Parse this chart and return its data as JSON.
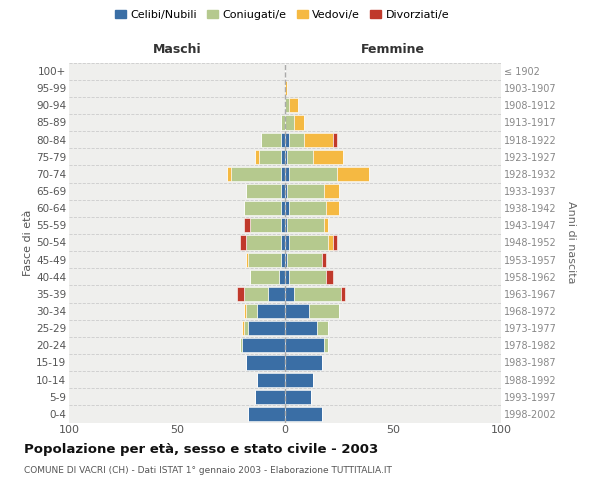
{
  "age_groups": [
    "0-4",
    "5-9",
    "10-14",
    "15-19",
    "20-24",
    "25-29",
    "30-34",
    "35-39",
    "40-44",
    "45-49",
    "50-54",
    "55-59",
    "60-64",
    "65-69",
    "70-74",
    "75-79",
    "80-84",
    "85-89",
    "90-94",
    "95-99",
    "100+"
  ],
  "birth_years": [
    "1998-2002",
    "1993-1997",
    "1988-1992",
    "1983-1987",
    "1978-1982",
    "1973-1977",
    "1968-1972",
    "1963-1967",
    "1958-1962",
    "1953-1957",
    "1948-1952",
    "1943-1947",
    "1938-1942",
    "1933-1937",
    "1928-1932",
    "1923-1927",
    "1918-1922",
    "1913-1917",
    "1908-1912",
    "1903-1907",
    "≤ 1902"
  ],
  "maschi": {
    "celibi": [
      17,
      14,
      13,
      18,
      20,
      17,
      13,
      8,
      3,
      2,
      2,
      2,
      2,
      2,
      2,
      2,
      2,
      0,
      0,
      0,
      0
    ],
    "coniugati": [
      0,
      0,
      0,
      0,
      1,
      2,
      5,
      11,
      13,
      15,
      16,
      14,
      17,
      16,
      23,
      10,
      9,
      2,
      0,
      0,
      0
    ],
    "vedovi": [
      0,
      0,
      0,
      0,
      0,
      1,
      1,
      0,
      0,
      1,
      0,
      0,
      0,
      0,
      2,
      2,
      0,
      0,
      0,
      0,
      0
    ],
    "divorziati": [
      0,
      0,
      0,
      0,
      0,
      0,
      0,
      3,
      0,
      0,
      3,
      3,
      0,
      0,
      0,
      0,
      0,
      0,
      0,
      0,
      0
    ]
  },
  "femmine": {
    "nubili": [
      17,
      12,
      13,
      17,
      18,
      15,
      11,
      4,
      2,
      1,
      2,
      1,
      2,
      1,
      2,
      1,
      2,
      0,
      0,
      0,
      0
    ],
    "coniugate": [
      0,
      0,
      0,
      0,
      2,
      5,
      14,
      22,
      17,
      16,
      18,
      17,
      17,
      17,
      22,
      12,
      7,
      4,
      2,
      0,
      0
    ],
    "vedove": [
      0,
      0,
      0,
      0,
      0,
      0,
      0,
      0,
      0,
      0,
      2,
      2,
      6,
      7,
      15,
      14,
      13,
      5,
      4,
      1,
      0
    ],
    "divorziate": [
      0,
      0,
      0,
      0,
      0,
      0,
      0,
      2,
      3,
      2,
      2,
      0,
      0,
      0,
      0,
      0,
      2,
      0,
      0,
      0,
      0
    ]
  },
  "colors": {
    "celibi": "#3a6ea5",
    "coniugati": "#b5c98e",
    "vedovi": "#f5b942",
    "divorziati": "#c0392b"
  },
  "xlim": 100,
  "title": "Popolazione per età, sesso e stato civile - 2003",
  "subtitle": "COMUNE DI VACRI (CH) - Dati ISTAT 1° gennaio 2003 - Elaborazione TUTTITALIA.IT",
  "ylabel_left": "Fasce di età",
  "ylabel_right": "Anni di nascita",
  "xlabel_left": "Maschi",
  "xlabel_right": "Femmine",
  "legend_labels": [
    "Celibi/Nubili",
    "Coniugati/e",
    "Vedovi/e",
    "Divorziati/e"
  ],
  "bg_color": "#efefed",
  "grid_color": "#cccccc"
}
